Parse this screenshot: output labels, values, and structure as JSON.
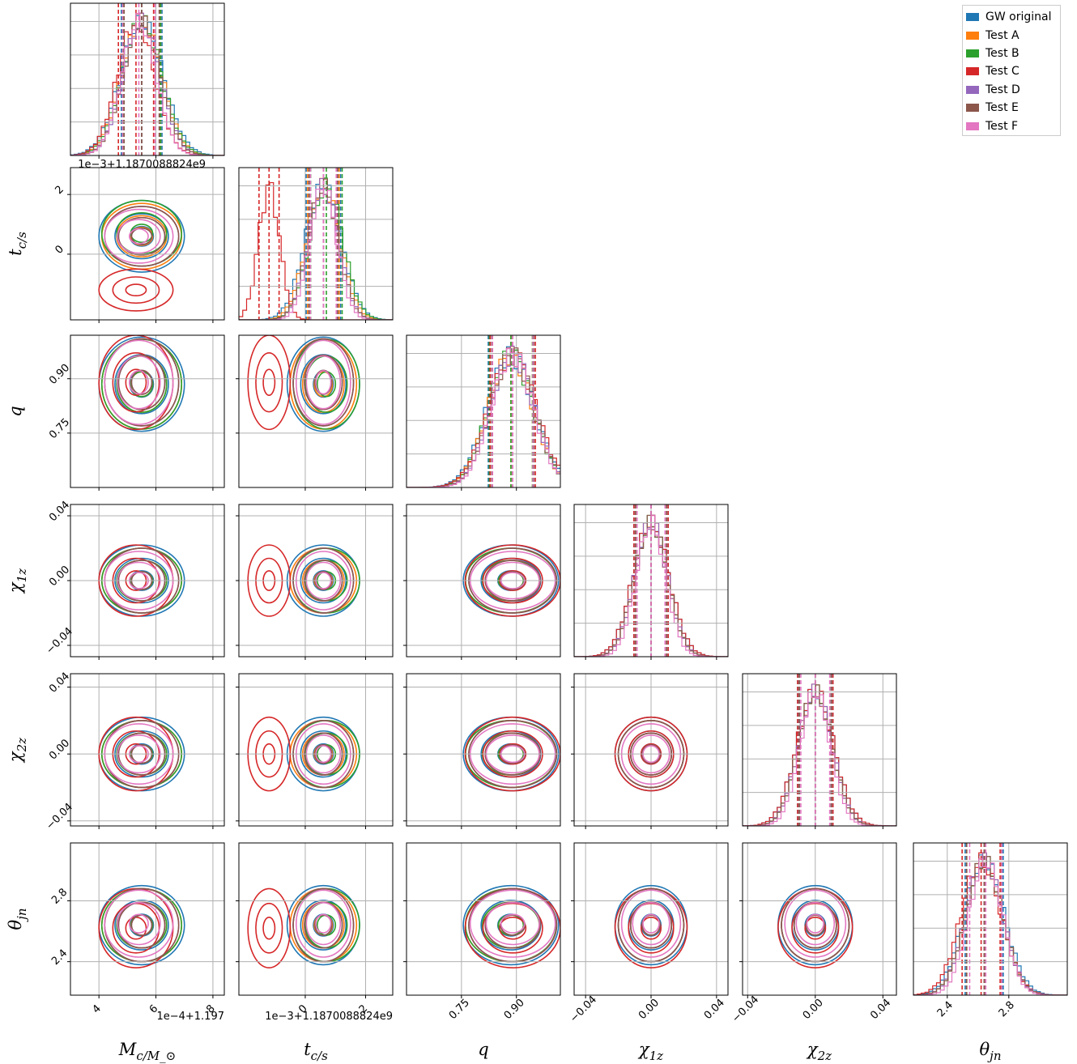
{
  "chart_data": {
    "type": "corner",
    "parameters": [
      {
        "key": "Mc",
        "label": "M_c/M_⊙",
        "range": [
          3.0,
          8.4
        ],
        "ticks": [
          4,
          6,
          8
        ],
        "tick_labels": [
          "4",
          "6",
          "8"
        ],
        "offset_text": "1e−4+1.197"
      },
      {
        "key": "tc",
        "label": "t_c/s",
        "range": [
          -2.2,
          2.9
        ],
        "ticks": [
          0,
          2
        ],
        "tick_labels": [
          "0",
          "2"
        ],
        "offset_text": "1e−3+1.1870088824e9"
      },
      {
        "key": "q",
        "label": "q",
        "range": [
          0.6,
          1.02
        ],
        "ticks": [
          0.75,
          0.9
        ],
        "tick_labels": [
          "0.75",
          "0.90"
        ],
        "offset_text": ""
      },
      {
        "key": "chi1z",
        "label": "χ_1z",
        "range": [
          -0.047,
          0.047
        ],
        "ticks": [
          -0.04,
          0.0,
          0.04
        ],
        "tick_labels": [
          "−0.04",
          "0.00",
          "0.04"
        ],
        "offset_text": ""
      },
      {
        "key": "chi2z",
        "label": "χ_2z",
        "range": [
          -0.043,
          0.048
        ],
        "ticks": [
          -0.04,
          0.0,
          0.04
        ],
        "tick_labels": [
          "−0.04",
          "0.00",
          "0.04"
        ],
        "offset_text": ""
      },
      {
        "key": "theta_jn",
        "label": "θ_jn",
        "range": [
          2.18,
          3.18
        ],
        "ticks": [
          2.4,
          2.8
        ],
        "tick_labels": [
          "2.4",
          "2.8"
        ],
        "offset_text": ""
      }
    ],
    "series": [
      {
        "name": "GW original",
        "color": "#1f77b4",
        "mean": [
          5.5,
          0.6,
          0.885,
          0.0,
          0.0,
          2.64
        ],
        "sigma": [
          0.75,
          0.6,
          0.065,
          0.011,
          0.011,
          0.13
        ]
      },
      {
        "name": "Test A",
        "color": "#ff7f0e",
        "mean": [
          5.5,
          0.6,
          0.885,
          0.0,
          0.0,
          2.64
        ],
        "sigma": [
          0.7,
          0.55,
          0.062,
          0.01,
          0.01,
          0.12
        ]
      },
      {
        "name": "Test B",
        "color": "#2ca02c",
        "mean": [
          5.5,
          0.7,
          0.885,
          0.0,
          0.0,
          2.64
        ],
        "sigma": [
          0.7,
          0.55,
          0.062,
          0.01,
          0.01,
          0.12
        ]
      },
      {
        "name": "Test C",
        "color": "#d62728",
        "mean": [
          5.3,
          -1.2,
          0.89,
          0.0,
          0.0,
          2.62
        ],
        "sigma": [
          0.65,
          0.35,
          0.065,
          0.011,
          0.011,
          0.13
        ]
      },
      {
        "name": "Test D",
        "color": "#9467bd",
        "mean": [
          5.5,
          0.6,
          0.89,
          0.0,
          0.0,
          2.64
        ],
        "sigma": [
          0.65,
          0.5,
          0.06,
          0.01,
          0.01,
          0.12
        ]
      },
      {
        "name": "Test E",
        "color": "#8c564b",
        "mean": [
          5.5,
          0.6,
          0.89,
          0.0,
          0.0,
          2.64
        ],
        "sigma": [
          0.65,
          0.5,
          0.06,
          0.01,
          0.01,
          0.12
        ]
      },
      {
        "name": "Test F",
        "color": "#e377c2",
        "mean": [
          5.4,
          0.6,
          0.89,
          0.0,
          0.0,
          2.65
        ],
        "sigma": [
          0.6,
          0.45,
          0.058,
          0.009,
          0.009,
          0.11
        ]
      }
    ],
    "grid": true,
    "legend_position": "top-right"
  }
}
